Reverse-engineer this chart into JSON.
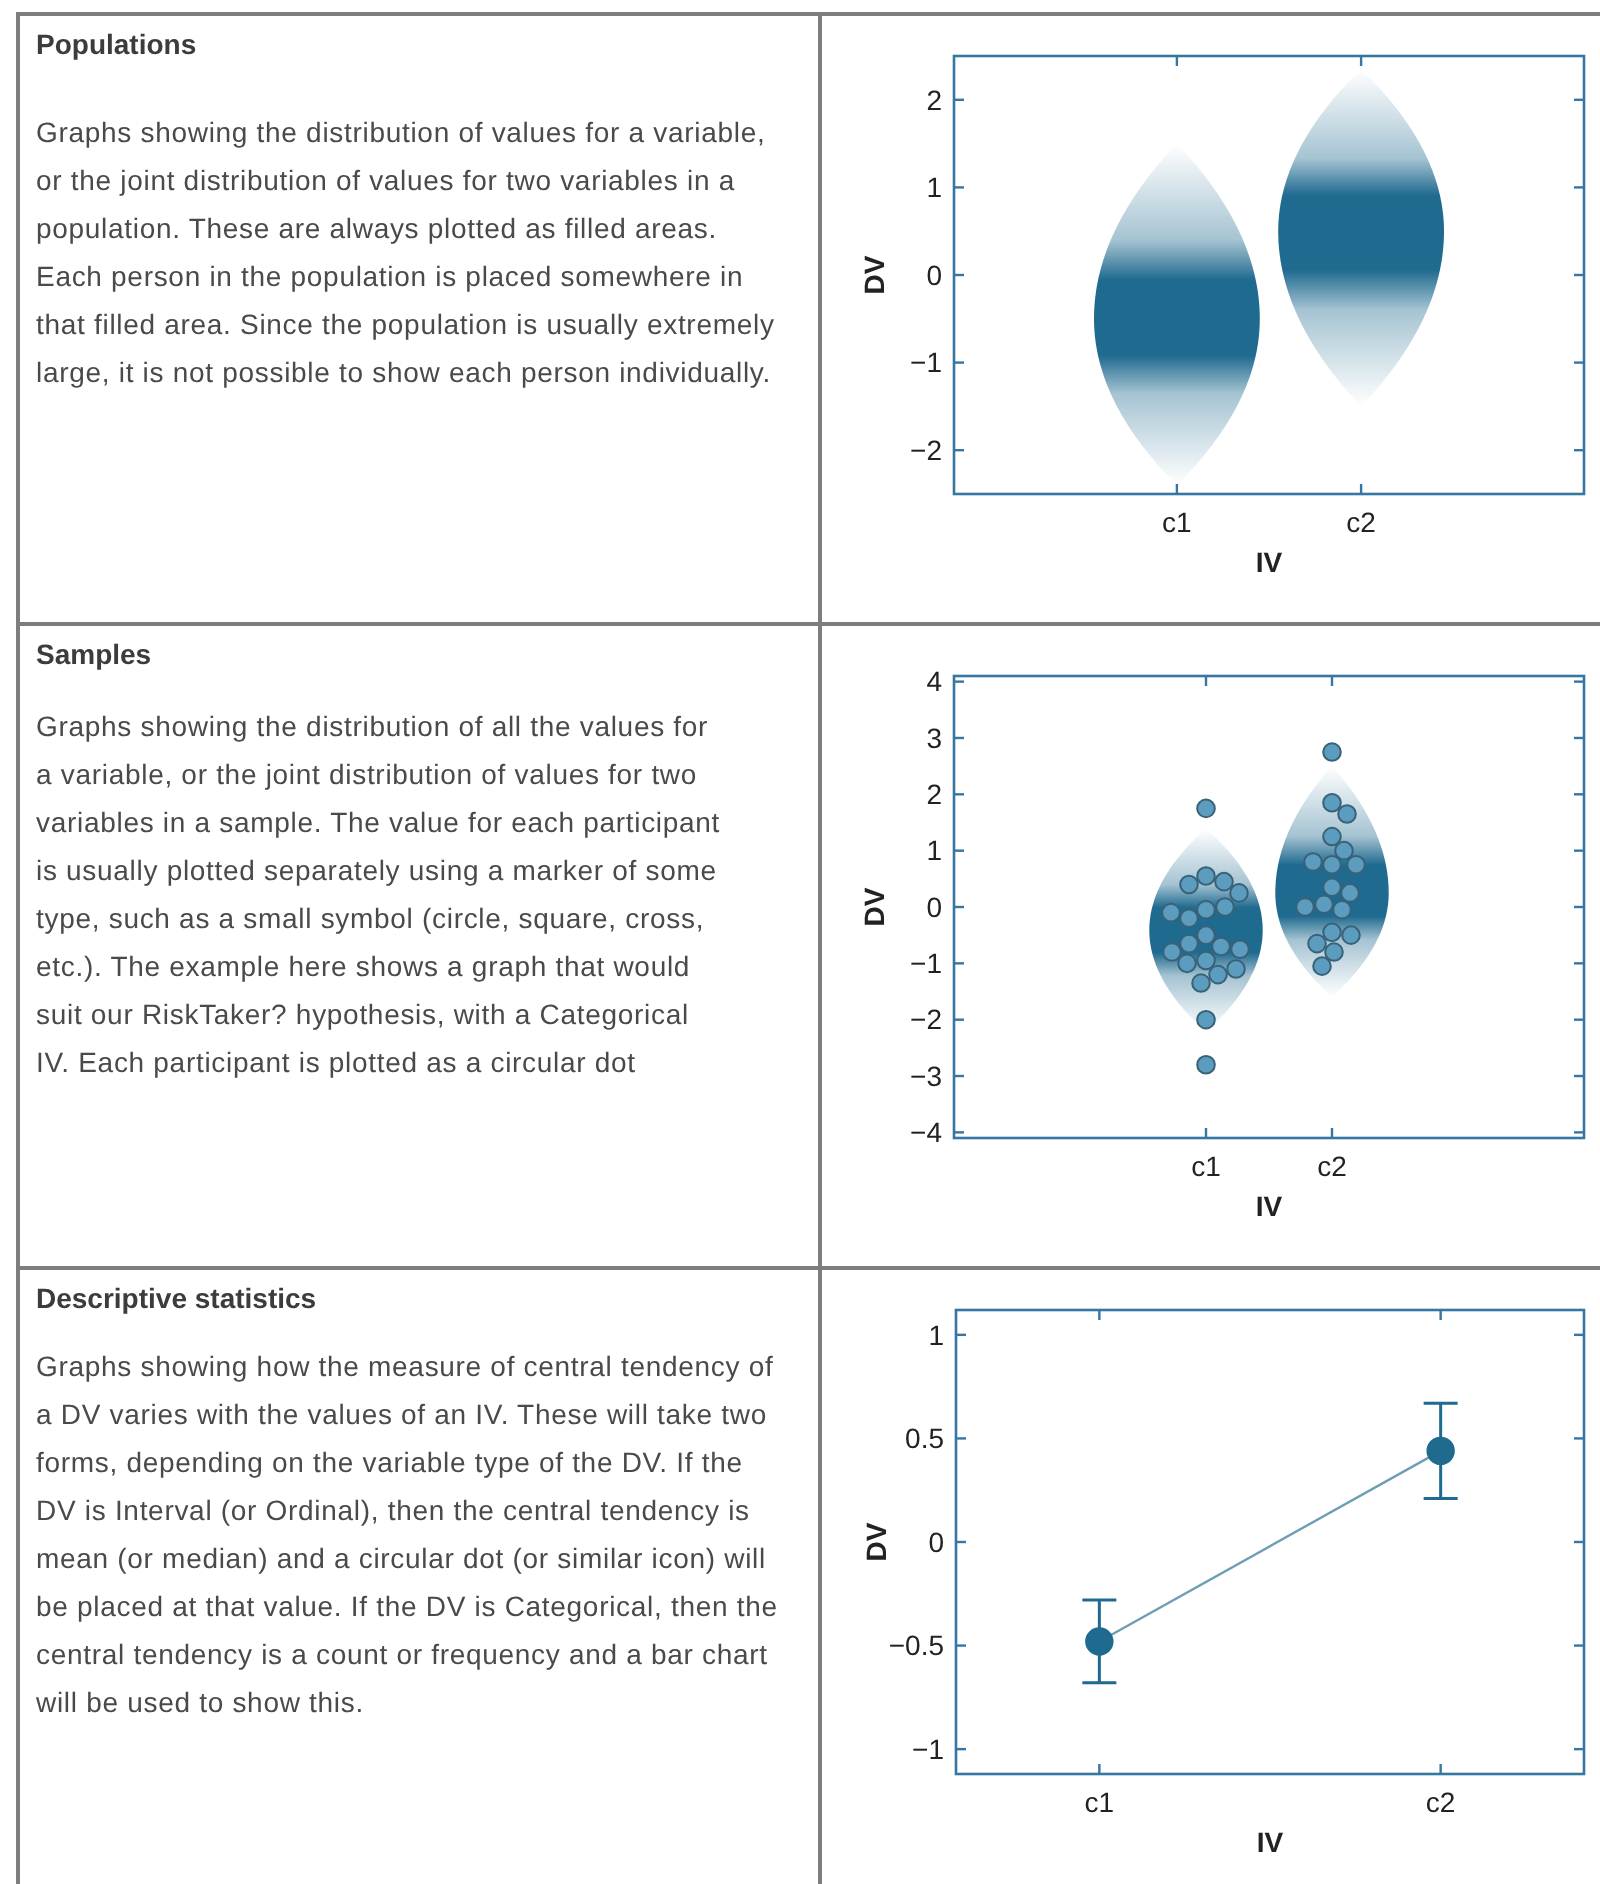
{
  "chart_data": [
    {
      "type": "other",
      "title": "Populations",
      "annotations": [
        "Graphs showing the distribution of values for a variable, or the joint distribution of values for two variables in a population. These are always plotted as filled areas. Each person in the population is placed somewhere in that filled area. Since the population is usually extremely large, it is not possible to show each person individually."
      ]
    },
    {
      "type": "scatter",
      "xlabel": "IV",
      "ylabel": "DV",
      "categories": [
        "c1",
        "c2"
      ],
      "ylim": [
        -2.5,
        2.5
      ],
      "yticks": [
        -2,
        -1,
        0,
        1,
        2
      ]
    },
    {
      "type": "other",
      "title": "Samples",
      "annotations": [
        "Graphs showing the distribution of all the values for a variable, or the joint distribution of values for two variables in a sample. The value for each participant is usually plotted separately using a marker of some type, such as a small symbol (circle, square, cross, etc.). The example here shows a graph that would suit our RiskTaker? hypothesis, with a Categorical IV. Each participant is plotted as a circular dot"
      ]
    },
    {
      "type": "scatter",
      "xlabel": "IV",
      "ylabel": "DV",
      "categories": [
        "c1",
        "c2"
      ],
      "ylim": [
        -4.1,
        4.1
      ],
      "yticks": [
        -4,
        -3,
        -2,
        -1,
        0,
        1,
        2,
        3,
        4
      ],
      "marker": "circle",
      "series": [
        {
          "color": "#5b9cbf",
          "x": [
            "c1",
            "c1",
            "c1",
            "c1",
            "c1",
            "c1",
            "c1",
            "c1",
            "c1",
            "c1",
            "c1",
            "c1",
            "c1",
            "c1",
            "c1",
            "c1",
            "c1",
            "c1",
            "c1",
            "c1",
            "c1",
            "c2",
            "c2",
            "c2",
            "c2",
            "c2",
            "c2",
            "c2",
            "c2",
            "c2",
            "c2",
            "c2",
            "c2",
            "c2",
            "c2",
            "c2",
            "c2",
            "c2",
            "c2"
          ],
          "values": [
            1.75,
            0.55,
            0.45,
            0.4,
            0.25,
            -0.05,
            0,
            -0.2,
            -0.1,
            -0.5,
            -0.7,
            -0.65,
            -0.75,
            -0.8,
            -0.95,
            -1,
            -1.2,
            -1.1,
            -1.35,
            -2,
            -2.8,
            2.75,
            1.85,
            1.65,
            1.25,
            1,
            0.75,
            0.8,
            0.75,
            0.35,
            0.25,
            0.05,
            -0.05,
            0,
            -0.45,
            -0.5,
            -0.65,
            -0.8,
            -1.05
          ]
        }
      ]
    },
    {
      "type": "other",
      "title": "Descriptive statistics",
      "annotations": [
        "Graphs showing how the measure of central tendency of a DV varies with the values of an IV. These will take two forms, depending on the variable type of the DV. If the DV is Interval (or Ordinal), then the central tendency is mean (or median) and a circular dot (or similar icon) will be placed at that value. If the DV is Categorical, then the central tendency is a count or frequency and a bar chart will be used to show this."
      ]
    },
    {
      "type": "line",
      "xlabel": "IV",
      "ylabel": "DV",
      "categories": [
        "c1",
        "c2"
      ],
      "ylim": [
        -1.12,
        1.12
      ],
      "yticks": [
        -1,
        -0.5,
        0,
        0.5,
        1
      ],
      "marker": "circle",
      "series": [
        {
          "color": "#1f6a8f",
          "values": [
            -0.48,
            0.44
          ],
          "errors": [
            0.2,
            0.23
          ]
        }
      ]
    }
  ]
}
